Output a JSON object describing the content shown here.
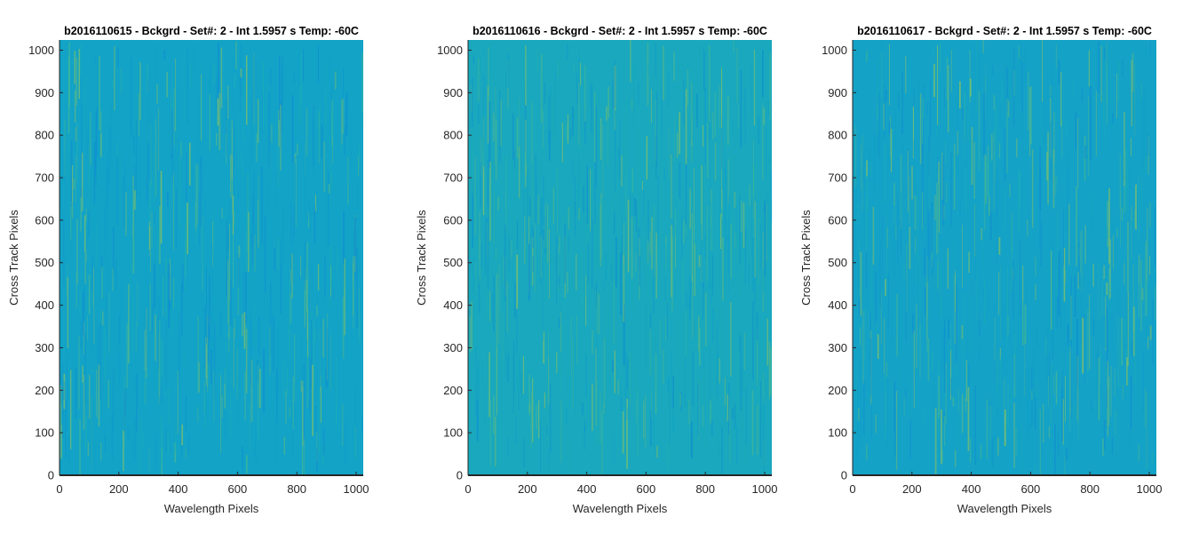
{
  "chart_data": [
    {
      "type": "heatmap",
      "title": "b2016110615 - Bckgrd - Set#: 2 - Int 1.5957 s Temp: -60C",
      "xlabel": "Wavelength Pixels",
      "ylabel": "Cross Track Pixels",
      "xlim": [
        0,
        1024
      ],
      "ylim": [
        0,
        1024
      ],
      "xticks": [
        0,
        200,
        400,
        600,
        800,
        1000
      ],
      "yticks": [
        0,
        100,
        200,
        300,
        400,
        500,
        600,
        700,
        800,
        900,
        1000
      ],
      "colormap": [
        "#0f8fd0",
        "#11a0c8",
        "#1cabb8",
        "#45b596",
        "#7fbf6a"
      ],
      "dominant_color": "#12a3c6",
      "seed": 15
    },
    {
      "type": "heatmap",
      "title": "b2016110616 - Bckgrd - Set#: 2 - Int 1.5957 s Temp: -60C",
      "xlabel": "Wavelength Pixels",
      "ylabel": "Cross Track Pixels",
      "xlim": [
        0,
        1024
      ],
      "ylim": [
        0,
        1024
      ],
      "xticks": [
        0,
        200,
        400,
        600,
        800,
        1000
      ],
      "yticks": [
        0,
        100,
        200,
        300,
        400,
        500,
        600,
        700,
        800,
        900,
        1000
      ],
      "colormap": [
        "#0f8fd0",
        "#11a0c8",
        "#1cabb8",
        "#45b596",
        "#7fbf6a"
      ],
      "dominant_color": "#19a8bd",
      "seed": 16
    },
    {
      "type": "heatmap",
      "title": "b2016110617 - Bckgrd - Set#: 2 - Int 1.5957 s Temp: -60C",
      "xlabel": "Wavelength Pixels",
      "ylabel": "Cross Track Pixels",
      "xlim": [
        0,
        1024
      ],
      "ylim": [
        0,
        1024
      ],
      "xticks": [
        0,
        200,
        400,
        600,
        800,
        1000
      ],
      "yticks": [
        0,
        100,
        200,
        300,
        400,
        500,
        600,
        700,
        800,
        900,
        1000
      ],
      "colormap": [
        "#0f8fd0",
        "#11a0c8",
        "#1cabb8",
        "#45b596",
        "#7fbf6a"
      ],
      "dominant_color": "#14a2c6",
      "seed": 17
    }
  ]
}
